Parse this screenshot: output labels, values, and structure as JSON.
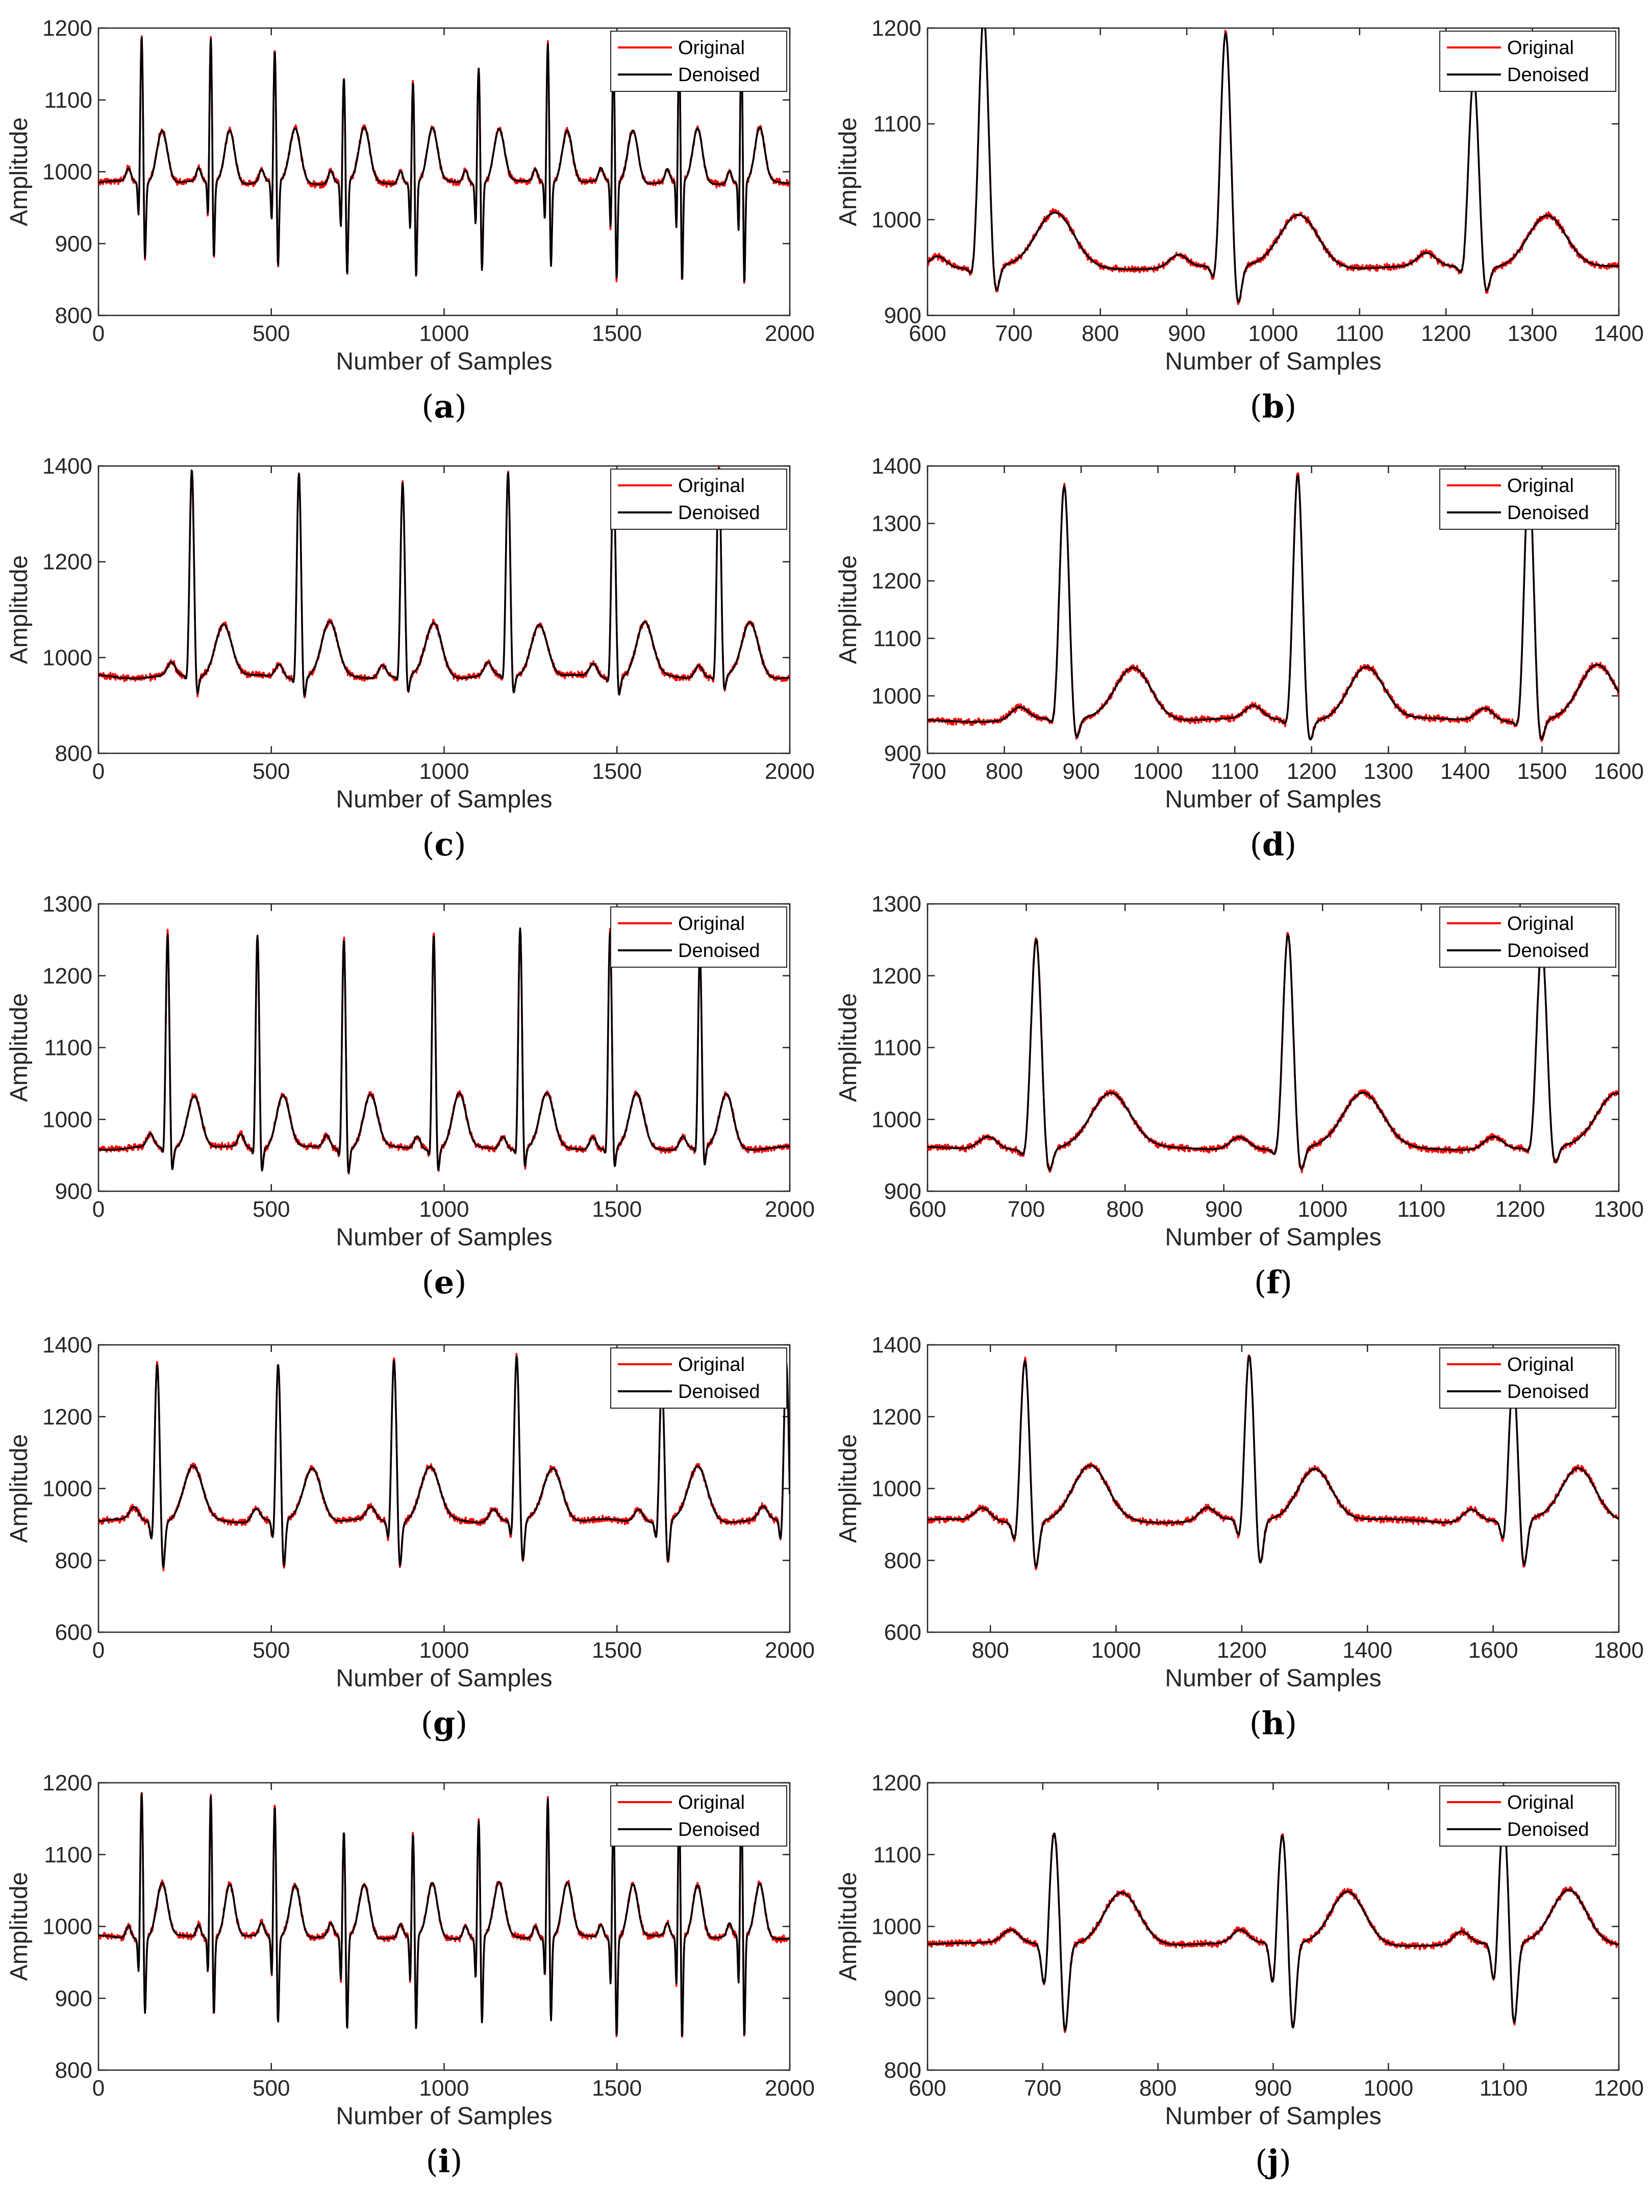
{
  "figure": {
    "colors": {
      "original": "#ff0000",
      "denoised": "#000000",
      "axis": "#262626"
    },
    "legend_placement": "top-right",
    "grid": false
  },
  "chart_data": [
    {
      "type": "line",
      "caption": "a",
      "xlabel": "Number of Samples",
      "ylabel": "Amplitude",
      "xlim": [
        0,
        2000
      ],
      "ylim": [
        800,
        1200
      ],
      "xticks": [
        0,
        500,
        1000,
        1500,
        2000
      ],
      "yticks": [
        800,
        900,
        1000,
        1100,
        1200
      ],
      "baseline": 985,
      "series": [
        {
          "name": "Original",
          "color": "#ff0000"
        },
        {
          "name": "Denoised",
          "color": "#000000"
        }
      ],
      "beats": [
        {
          "x": 125,
          "peak": 1192,
          "trough": 866
        },
        {
          "x": 325,
          "peak": 1188,
          "trough": 864
        },
        {
          "x": 510,
          "peak": 1170,
          "trough": 852
        },
        {
          "x": 710,
          "peak": 1133,
          "trough": 843
        },
        {
          "x": 910,
          "peak": 1130,
          "trough": 843
        },
        {
          "x": 1100,
          "peak": 1150,
          "trough": 852
        },
        {
          "x": 1300,
          "peak": 1183,
          "trough": 855
        },
        {
          "x": 1490,
          "peak": 1160,
          "trough": 836
        },
        {
          "x": 1680,
          "peak": 1170,
          "trough": 830
        },
        {
          "x": 1860,
          "peak": 1170,
          "trough": 828
        }
      ]
    },
    {
      "type": "line",
      "caption": "b",
      "xlabel": "Number of Samples",
      "ylabel": "Amplitude",
      "xlim": [
        600,
        1400
      ],
      "ylim": [
        900,
        1200
      ],
      "xticks": [
        600,
        700,
        800,
        900,
        1000,
        1100,
        1200,
        1300,
        1400
      ],
      "yticks": [
        900,
        1000,
        1100,
        1200
      ],
      "baseline": 950,
      "series": [
        {
          "name": "Original",
          "color": "#ff0000"
        },
        {
          "name": "Denoised",
          "color": "#000000"
        }
      ],
      "beats": [
        {
          "x": 665,
          "peak": 1215,
          "trough": 912
        },
        {
          "x": 945,
          "peak": 1195,
          "trough": 898
        },
        {
          "x": 1232,
          "peak": 1150,
          "trough": 915
        }
      ]
    },
    {
      "type": "line",
      "caption": "c",
      "xlabel": "Number of Samples",
      "ylabel": "Amplitude",
      "xlim": [
        0,
        2000
      ],
      "ylim": [
        800,
        1400
      ],
      "xticks": [
        0,
        500,
        1000,
        1500,
        2000
      ],
      "yticks": [
        800,
        1000,
        1200,
        1400
      ],
      "baseline": 960,
      "series": [
        {
          "name": "Original",
          "color": "#ff0000"
        },
        {
          "name": "Denoised",
          "color": "#000000"
        }
      ],
      "beats": [
        {
          "x": 270,
          "peak": 1395,
          "trough": 905
        },
        {
          "x": 580,
          "peak": 1390,
          "trough": 900
        },
        {
          "x": 880,
          "peak": 1365,
          "trough": 905
        },
        {
          "x": 1185,
          "peak": 1388,
          "trough": 905
        },
        {
          "x": 1490,
          "peak": 1390,
          "trough": 905
        },
        {
          "x": 1795,
          "peak": 1398,
          "trough": 910
        }
      ]
    },
    {
      "type": "line",
      "caption": "d",
      "xlabel": "Number of Samples",
      "ylabel": "Amplitude",
      "xlim": [
        700,
        1600
      ],
      "ylim": [
        900,
        1400
      ],
      "xticks": [
        700,
        800,
        900,
        1000,
        1100,
        1200,
        1300,
        1400,
        1500,
        1600
      ],
      "yticks": [
        900,
        1000,
        1100,
        1200,
        1300,
        1400
      ],
      "baseline": 958,
      "series": [
        {
          "name": "Original",
          "color": "#ff0000"
        },
        {
          "name": "Denoised",
          "color": "#000000"
        }
      ],
      "beats": [
        {
          "x": 878,
          "peak": 1365,
          "trough": 905
        },
        {
          "x": 1182,
          "peak": 1388,
          "trough": 905
        },
        {
          "x": 1483,
          "peak": 1390,
          "trough": 905
        }
      ]
    },
    {
      "type": "line",
      "caption": "e",
      "xlabel": "Number of Samples",
      "ylabel": "Amplitude",
      "xlim": [
        0,
        2000
      ],
      "ylim": [
        900,
        1300
      ],
      "xticks": [
        0,
        500,
        1000,
        1500,
        2000
      ],
      "yticks": [
        900,
        1000,
        1100,
        1200,
        1300
      ],
      "baseline": 960,
      "series": [
        {
          "name": "Original",
          "color": "#ff0000"
        },
        {
          "name": "Denoised",
          "color": "#000000"
        }
      ],
      "beats": [
        {
          "x": 200,
          "peak": 1260,
          "trough": 915
        },
        {
          "x": 460,
          "peak": 1260,
          "trough": 915
        },
        {
          "x": 710,
          "peak": 1255,
          "trough": 912
        },
        {
          "x": 970,
          "peak": 1262,
          "trough": 915
        },
        {
          "x": 1220,
          "peak": 1270,
          "trough": 920
        },
        {
          "x": 1480,
          "peak": 1262,
          "trough": 918
        },
        {
          "x": 1740,
          "peak": 1232,
          "trough": 920
        }
      ]
    },
    {
      "type": "line",
      "caption": "f",
      "xlabel": "Number of Samples",
      "ylabel": "Amplitude",
      "xlim": [
        600,
        1300
      ],
      "ylim": [
        900,
        1300
      ],
      "xticks": [
        600,
        700,
        800,
        900,
        1000,
        1100,
        1200,
        1300
      ],
      "yticks": [
        900,
        1000,
        1100,
        1200,
        1300
      ],
      "baseline": 960,
      "series": [
        {
          "name": "Original",
          "color": "#ff0000"
        },
        {
          "name": "Denoised",
          "color": "#000000"
        }
      ],
      "beats": [
        {
          "x": 710,
          "peak": 1255,
          "trough": 915
        },
        {
          "x": 965,
          "peak": 1260,
          "trough": 915
        },
        {
          "x": 1222,
          "peak": 1240,
          "trough": 925
        }
      ]
    },
    {
      "type": "line",
      "caption": "g",
      "xlabel": "Number of Samples",
      "ylabel": "Amplitude",
      "xlim": [
        0,
        2000
      ],
      "ylim": [
        600,
        1400
      ],
      "xticks": [
        0,
        500,
        1000,
        1500,
        2000
      ],
      "yticks": [
        600,
        800,
        1000,
        1200,
        1400
      ],
      "baseline": 910,
      "series": [
        {
          "name": "Original",
          "color": "#ff0000"
        },
        {
          "name": "Denoised",
          "color": "#000000"
        }
      ],
      "beats": [
        {
          "x": 170,
          "peak": 1355,
          "trough": 755
        },
        {
          "x": 520,
          "peak": 1345,
          "trough": 750
        },
        {
          "x": 855,
          "peak": 1365,
          "trough": 760
        },
        {
          "x": 1210,
          "peak": 1370,
          "trough": 765
        },
        {
          "x": 1630,
          "peak": 1300,
          "trough": 770
        },
        {
          "x": 1990,
          "peak": 1355,
          "trough": 745
        }
      ]
    },
    {
      "type": "line",
      "caption": "h",
      "xlabel": "Number of Samples",
      "ylabel": "Amplitude",
      "xlim": [
        700,
        1800
      ],
      "ylim": [
        600,
        1400
      ],
      "xticks": [
        800,
        1000,
        1200,
        1400,
        1600,
        1800
      ],
      "yticks": [
        600,
        800,
        1000,
        1200,
        1400
      ],
      "baseline": 910,
      "series": [
        {
          "name": "Original",
          "color": "#ff0000"
        },
        {
          "name": "Denoised",
          "color": "#000000"
        }
      ],
      "beats": [
        {
          "x": 855,
          "peak": 1365,
          "trough": 755
        },
        {
          "x": 1212,
          "peak": 1370,
          "trough": 760
        },
        {
          "x": 1632,
          "peak": 1300,
          "trough": 755
        }
      ]
    },
    {
      "type": "line",
      "caption": "i",
      "xlabel": "Number of Samples",
      "ylabel": "Amplitude",
      "xlim": [
        0,
        2000
      ],
      "ylim": [
        800,
        1200
      ],
      "xticks": [
        0,
        500,
        1000,
        1500,
        2000
      ],
      "yticks": [
        800,
        900,
        1000,
        1100,
        1200
      ],
      "baseline": 985,
      "series": [
        {
          "name": "Original",
          "color": "#ff0000"
        },
        {
          "name": "Denoised",
          "color": "#000000"
        }
      ],
      "beats": [
        {
          "x": 125,
          "peak": 1192,
          "trough": 866
        },
        {
          "x": 325,
          "peak": 1188,
          "trough": 864
        },
        {
          "x": 510,
          "peak": 1170,
          "trough": 852
        },
        {
          "x": 710,
          "peak": 1133,
          "trough": 843
        },
        {
          "x": 910,
          "peak": 1130,
          "trough": 843
        },
        {
          "x": 1100,
          "peak": 1150,
          "trough": 852
        },
        {
          "x": 1300,
          "peak": 1183,
          "trough": 855
        },
        {
          "x": 1490,
          "peak": 1160,
          "trough": 836
        },
        {
          "x": 1680,
          "peak": 1170,
          "trough": 830
        },
        {
          "x": 1860,
          "peak": 1170,
          "trough": 828
        }
      ]
    },
    {
      "type": "line",
      "caption": "j",
      "xlabel": "Number of Samples",
      "ylabel": "Amplitude",
      "xlim": [
        600,
        1200
      ],
      "ylim": [
        800,
        1200
      ],
      "xticks": [
        600,
        700,
        800,
        900,
        1000,
        1100,
        1200
      ],
      "yticks": [
        800,
        900,
        1000,
        1100,
        1200
      ],
      "baseline": 975,
      "series": [
        {
          "name": "Original",
          "color": "#ff0000"
        },
        {
          "name": "Denoised",
          "color": "#000000"
        }
      ],
      "beats": [
        {
          "x": 710,
          "peak": 1133,
          "trough": 843
        },
        {
          "x": 908,
          "peak": 1128,
          "trough": 845
        },
        {
          "x": 1100,
          "peak": 1150,
          "trough": 850
        }
      ]
    }
  ]
}
